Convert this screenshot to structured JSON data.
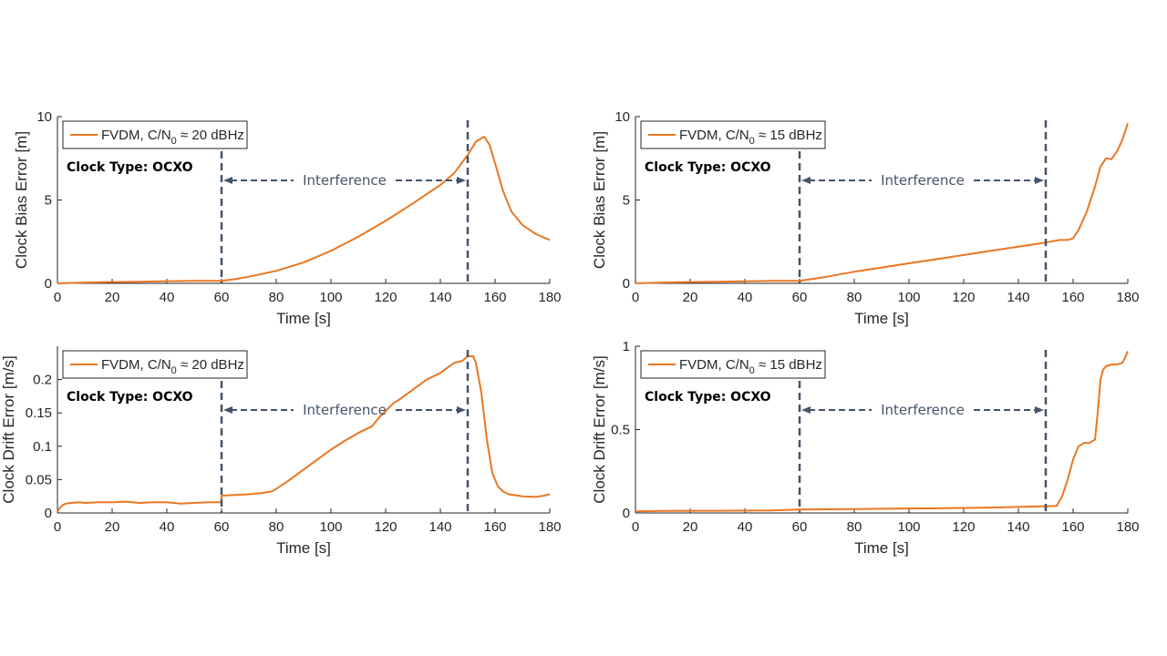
{
  "colors": {
    "series": "#e87722",
    "marker": "#44546a",
    "axis": "#262626",
    "background": "#ffffff"
  },
  "chart_data": [
    {
      "type": "line",
      "xlabel": "Time [s]",
      "ylabel": "Clock Bias Error [m]",
      "xlim": [
        0,
        180
      ],
      "ylim": [
        0,
        10
      ],
      "xticks": [
        0,
        20,
        40,
        60,
        80,
        100,
        120,
        140,
        160,
        180
      ],
      "yticks": [
        0,
        5,
        10
      ],
      "ytick_labels": [
        "0",
        "5",
        "10"
      ],
      "legend": {
        "prefix": "FVDM, C/N",
        "subscript": "0",
        "suffix": " ≈ 20 dBHz",
        "placement": "top-left"
      },
      "annotation": "Clock Type: OCXO",
      "interference": {
        "label": "Interference",
        "start": 60,
        "end": 150
      },
      "series": [
        {
          "x": [
            0,
            10,
            20,
            30,
            40,
            50,
            60,
            65,
            70,
            80,
            90,
            100,
            110,
            120,
            130,
            140,
            145,
            150,
            153,
            156,
            158,
            160,
            163,
            166,
            170,
            175,
            180
          ],
          "y": [
            0.0,
            0.05,
            0.08,
            0.1,
            0.13,
            0.15,
            0.15,
            0.25,
            0.4,
            0.75,
            1.25,
            1.95,
            2.8,
            3.75,
            4.8,
            5.9,
            6.6,
            7.7,
            8.5,
            8.8,
            8.3,
            7.2,
            5.5,
            4.3,
            3.5,
            2.95,
            2.6
          ]
        }
      ]
    },
    {
      "type": "line",
      "xlabel": "Time [s]",
      "ylabel": "Clock Bias Error [m]",
      "xlim": [
        0,
        180
      ],
      "ylim": [
        0,
        10
      ],
      "xticks": [
        0,
        20,
        40,
        60,
        80,
        100,
        120,
        140,
        160,
        180
      ],
      "yticks": [
        0,
        5,
        10
      ],
      "ytick_labels": [
        "0",
        "5",
        "10"
      ],
      "legend": {
        "prefix": "FVDM, C/N",
        "subscript": "0",
        "suffix": " ≈ 15 dBHz",
        "placement": "top-left"
      },
      "annotation": "Clock Type: OCXO",
      "interference": {
        "label": "Interference",
        "start": 60,
        "end": 150
      },
      "series": [
        {
          "x": [
            0,
            10,
            20,
            30,
            40,
            50,
            60,
            70,
            80,
            90,
            100,
            110,
            120,
            130,
            140,
            150,
            155,
            158,
            160,
            162,
            165,
            168,
            170,
            172,
            174,
            176,
            178,
            180
          ],
          "y": [
            0.0,
            0.05,
            0.08,
            0.1,
            0.12,
            0.15,
            0.15,
            0.4,
            0.7,
            0.95,
            1.2,
            1.45,
            1.7,
            1.95,
            2.2,
            2.45,
            2.6,
            2.6,
            2.7,
            3.2,
            4.3,
            5.8,
            7.0,
            7.5,
            7.45,
            7.9,
            8.6,
            9.6
          ]
        }
      ]
    },
    {
      "type": "line",
      "xlabel": "Time [s]",
      "ylabel": "Clock Drift Error [m/s]",
      "xlim": [
        0,
        180
      ],
      "ylim": [
        0,
        0.25
      ],
      "xticks": [
        0,
        20,
        40,
        60,
        80,
        100,
        120,
        140,
        160,
        180
      ],
      "yticks": [
        0,
        0.05,
        0.1,
        0.15,
        0.2
      ],
      "ytick_labels": [
        "0",
        "0.05",
        "0.1",
        "0.15",
        "0.2"
      ],
      "legend": {
        "prefix": "FVDM, C/N",
        "subscript": "0",
        "suffix": " ≈ 20 dBHz",
        "placement": "top-left"
      },
      "annotation": "Clock Type: OCXO",
      "interference": {
        "label": "Interference",
        "start": 60,
        "end": 150
      },
      "series": [
        {
          "x": [
            0,
            1,
            2,
            3,
            5,
            8,
            10,
            15,
            20,
            25,
            30,
            35,
            40,
            45,
            50,
            55,
            59.9,
            60,
            65,
            70,
            75,
            78,
            80,
            85,
            90,
            95,
            100,
            105,
            110,
            115,
            118,
            123,
            125,
            130,
            135,
            140,
            145,
            148,
            150,
            152,
            153,
            155,
            157,
            159,
            161,
            163,
            165,
            170,
            175,
            178,
            180
          ],
          "y": [
            0.002,
            0.008,
            0.012,
            0.014,
            0.015,
            0.016,
            0.015,
            0.016,
            0.016,
            0.017,
            0.015,
            0.016,
            0.016,
            0.014,
            0.015,
            0.016,
            0.016,
            0.026,
            0.027,
            0.028,
            0.03,
            0.032,
            0.036,
            0.05,
            0.065,
            0.08,
            0.095,
            0.108,
            0.12,
            0.13,
            0.145,
            0.165,
            0.17,
            0.185,
            0.2,
            0.21,
            0.225,
            0.228,
            0.235,
            0.235,
            0.225,
            0.18,
            0.11,
            0.06,
            0.04,
            0.032,
            0.028,
            0.025,
            0.024,
            0.026,
            0.028
          ]
        }
      ]
    },
    {
      "type": "line",
      "xlabel": "Time [s]",
      "ylabel": "Clock Drift Error [m/s]",
      "xlim": [
        0,
        180
      ],
      "ylim": [
        0,
        1
      ],
      "xticks": [
        0,
        20,
        40,
        60,
        80,
        100,
        120,
        140,
        160,
        180
      ],
      "yticks": [
        0,
        0.5,
        1
      ],
      "ytick_labels": [
        "0",
        "0.5",
        "1"
      ],
      "legend": {
        "prefix": "FVDM, C/N",
        "subscript": "0",
        "suffix": " ≈ 15 dBHz",
        "placement": "top-left"
      },
      "annotation": "Clock Type: OCXO",
      "interference": {
        "label": "Interference",
        "start": 60,
        "end": 150
      },
      "series": [
        {
          "x": [
            0,
            10,
            20,
            30,
            40,
            50,
            60,
            70,
            80,
            90,
            100,
            110,
            120,
            130,
            140,
            148,
            150,
            154,
            156,
            158,
            160,
            162,
            164,
            166,
            168,
            169,
            170,
            171,
            172,
            174,
            176,
            178,
            179,
            180
          ],
          "y": [
            0.01,
            0.012,
            0.013,
            0.013,
            0.014,
            0.015,
            0.02,
            0.022,
            0.023,
            0.025,
            0.027,
            0.028,
            0.03,
            0.032,
            0.036,
            0.04,
            0.04,
            0.042,
            0.1,
            0.2,
            0.32,
            0.4,
            0.42,
            0.42,
            0.44,
            0.6,
            0.8,
            0.86,
            0.88,
            0.89,
            0.89,
            0.9,
            0.93,
            0.97
          ]
        }
      ]
    }
  ]
}
